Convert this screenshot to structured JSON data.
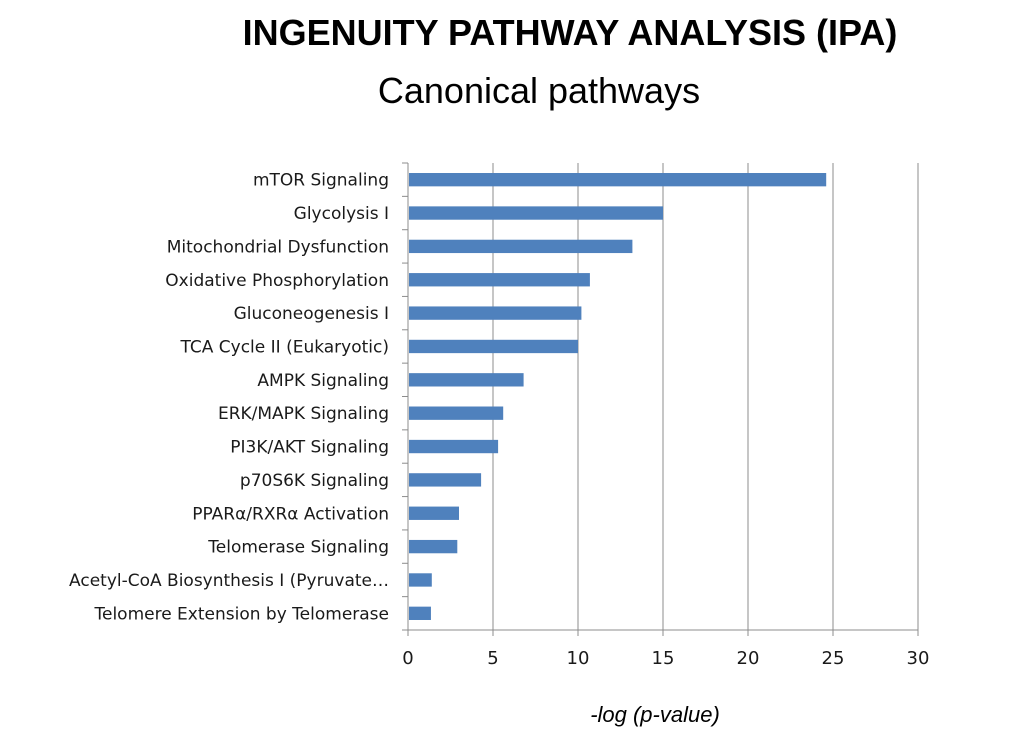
{
  "title": "INGENUITY PATHWAY ANALYSIS (IPA)",
  "subtitle": "Canonical pathways",
  "chart_data": {
    "type": "bar",
    "orientation": "horizontal",
    "categories": [
      "mTOR Signaling",
      "Glycolysis I",
      "Mitochondrial Dysfunction",
      "Oxidative Phosphorylation",
      "Gluconeogenesis I",
      "TCA Cycle II (Eukaryotic)",
      "AMPK Signaling",
      "ERK/MAPK Signaling",
      "PI3K/AKT Signaling",
      "p70S6K Signaling",
      "PPARα/RXRα Activation",
      "Telomerase Signaling",
      "Acetyl-CoA Biosynthesis I (Pyruvate…",
      "Telomere Extension by Telomerase"
    ],
    "values": [
      24.6,
      15.0,
      13.2,
      10.7,
      10.2,
      10.0,
      6.8,
      5.6,
      5.3,
      4.3,
      3.0,
      2.9,
      1.4,
      1.35
    ],
    "xlabel": "-log (p-value)",
    "ylabel": "",
    "xlim": [
      0,
      30
    ],
    "xticks": [
      0,
      5,
      10,
      15,
      20,
      25,
      30
    ],
    "grid": "vertical",
    "bar_color": "#4f81bd"
  }
}
